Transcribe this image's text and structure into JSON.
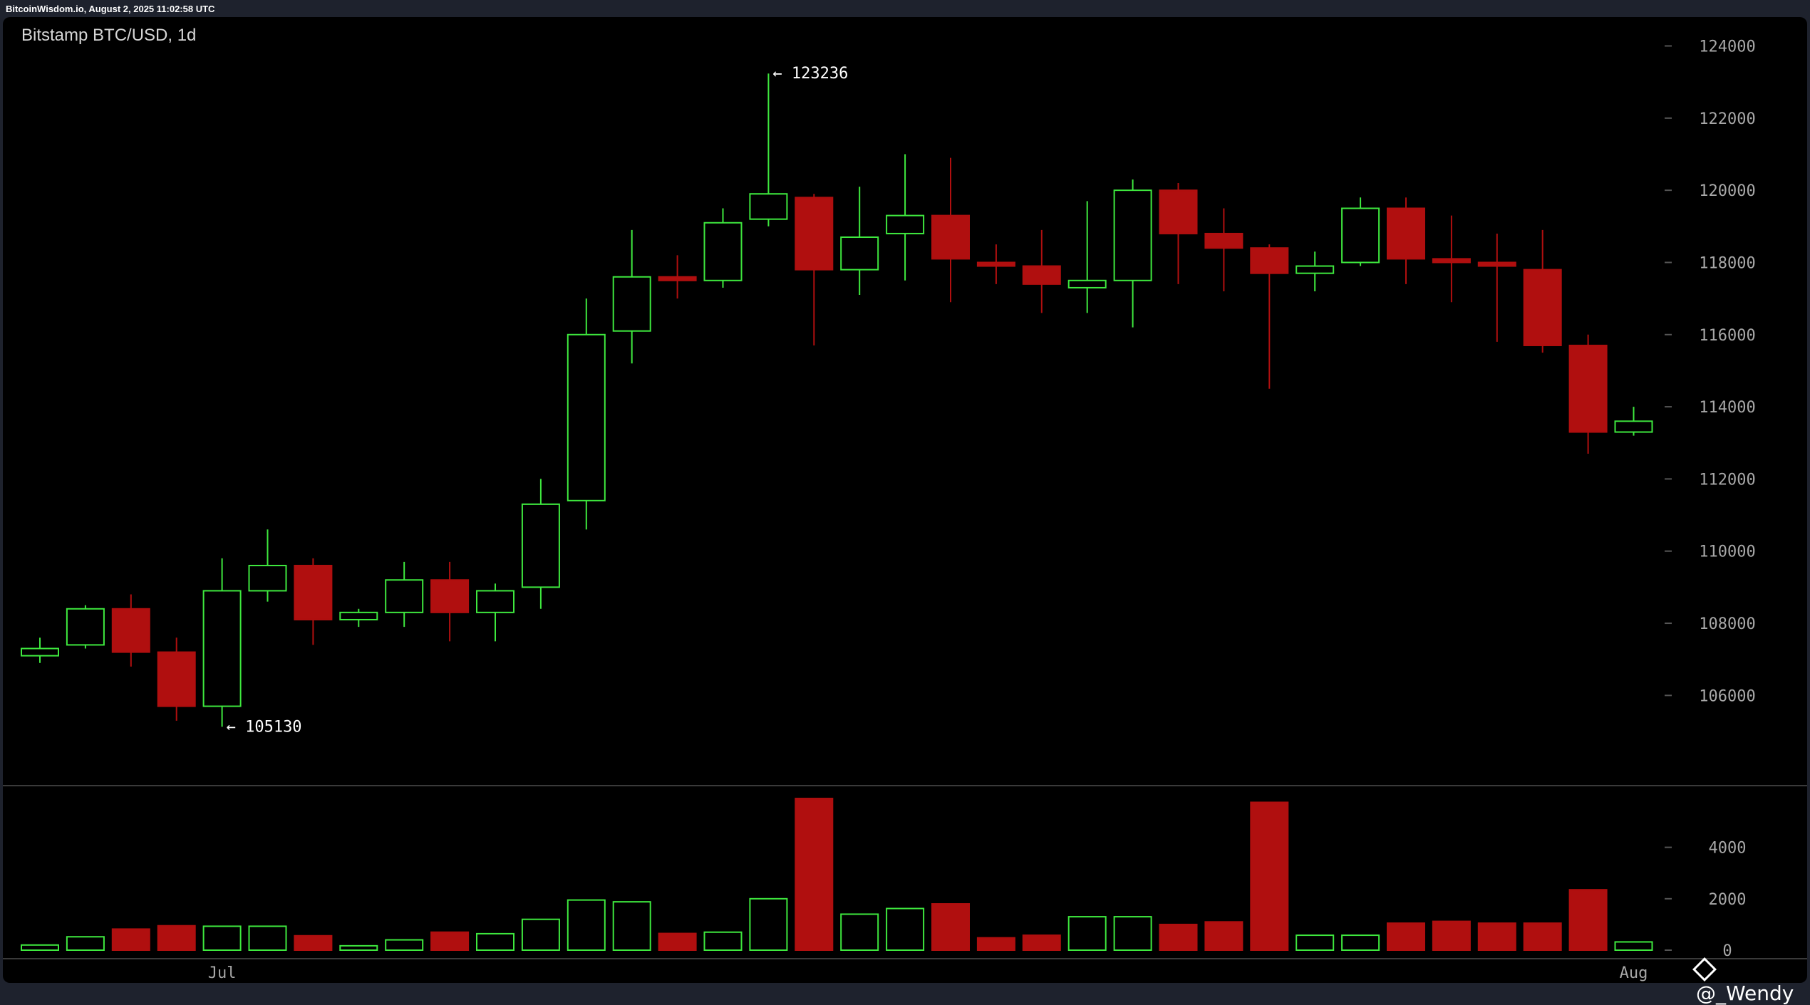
{
  "header": {
    "source_text": "BitcoinWisdom.io, August 2, 2025 11:02:58 UTC"
  },
  "watermark": {
    "text": "@_Wendy",
    "icon": "binance-diamond-icon"
  },
  "colors": {
    "up": "#3ee83e",
    "down": "#b00f0f",
    "background": "#000000",
    "axis_text": "#a8a8a8"
  },
  "chart_data": {
    "type": "candlestick",
    "title": "Bitstamp BTC/USD, 1d",
    "price_axis": {
      "ylim": [
        103500,
        124800
      ],
      "ticks": [
        106000,
        108000,
        110000,
        112000,
        114000,
        116000,
        118000,
        120000,
        122000,
        124000
      ],
      "position": "right"
    },
    "volume_axis": {
      "ylim": [
        0,
        6400
      ],
      "ticks": [
        0,
        2000,
        4000
      ]
    },
    "x_labels": [
      {
        "label": "Jul",
        "index": 4
      },
      {
        "label": "Aug",
        "index": 35
      }
    ],
    "annotations": [
      {
        "text": "← 123236",
        "index": 16,
        "value": 123236
      },
      {
        "text": "← 105130",
        "index": 4,
        "value": 105130
      }
    ],
    "candles": [
      {
        "open": 107100,
        "high": 107600,
        "low": 106900,
        "close": 107300,
        "volume": 200
      },
      {
        "open": 107400,
        "high": 108500,
        "low": 107300,
        "close": 108400,
        "volume": 520
      },
      {
        "open": 108400,
        "high": 108800,
        "low": 106800,
        "close": 107200,
        "volume": 820
      },
      {
        "open": 107200,
        "high": 107600,
        "low": 105300,
        "close": 105700,
        "volume": 950
      },
      {
        "open": 105700,
        "high": 109800,
        "low": 105130,
        "close": 108900,
        "volume": 930
      },
      {
        "open": 108900,
        "high": 110600,
        "low": 108600,
        "close": 109600,
        "volume": 930
      },
      {
        "open": 109600,
        "high": 109800,
        "low": 107400,
        "close": 108100,
        "volume": 560
      },
      {
        "open": 108100,
        "high": 108400,
        "low": 107900,
        "close": 108300,
        "volume": 170
      },
      {
        "open": 108300,
        "high": 109700,
        "low": 107900,
        "close": 109200,
        "volume": 400
      },
      {
        "open": 109200,
        "high": 109700,
        "low": 107500,
        "close": 108300,
        "volume": 700
      },
      {
        "open": 108300,
        "high": 109100,
        "low": 107500,
        "close": 108900,
        "volume": 640
      },
      {
        "open": 109000,
        "high": 112000,
        "low": 108400,
        "close": 111300,
        "volume": 1200
      },
      {
        "open": 111400,
        "high": 117000,
        "low": 110600,
        "close": 116000,
        "volume": 1950
      },
      {
        "open": 116100,
        "high": 118900,
        "low": 115200,
        "close": 117600,
        "volume": 1880
      },
      {
        "open": 117600,
        "high": 118200,
        "low": 117000,
        "close": 117500,
        "volume": 650
      },
      {
        "open": 117500,
        "high": 119500,
        "low": 117300,
        "close": 119100,
        "volume": 700
      },
      {
        "open": 119200,
        "high": 123236,
        "low": 119000,
        "close": 119900,
        "volume": 2000
      },
      {
        "open": 119800,
        "high": 119900,
        "low": 115700,
        "close": 117800,
        "volume": 5900
      },
      {
        "open": 117800,
        "high": 120100,
        "low": 117100,
        "close": 118700,
        "volume": 1400
      },
      {
        "open": 118800,
        "high": 121000,
        "low": 117500,
        "close": 119300,
        "volume": 1620
      },
      {
        "open": 119300,
        "high": 120900,
        "low": 116900,
        "close": 118100,
        "volume": 1800
      },
      {
        "open": 118000,
        "high": 118500,
        "low": 117400,
        "close": 117900,
        "volume": 480
      },
      {
        "open": 117900,
        "high": 118900,
        "low": 116600,
        "close": 117400,
        "volume": 580
      },
      {
        "open": 117300,
        "high": 119700,
        "low": 116600,
        "close": 117500,
        "volume": 1300
      },
      {
        "open": 117500,
        "high": 120300,
        "low": 116200,
        "close": 120000,
        "volume": 1300
      },
      {
        "open": 120000,
        "high": 120200,
        "low": 117400,
        "close": 118800,
        "volume": 1000
      },
      {
        "open": 118800,
        "high": 119500,
        "low": 117200,
        "close": 118400,
        "volume": 1100
      },
      {
        "open": 118400,
        "high": 118500,
        "low": 114500,
        "close": 117700,
        "volume": 5750
      },
      {
        "open": 117700,
        "high": 118300,
        "low": 117200,
        "close": 117900,
        "volume": 580
      },
      {
        "open": 118000,
        "high": 119800,
        "low": 117900,
        "close": 119500,
        "volume": 580
      },
      {
        "open": 119500,
        "high": 119800,
        "low": 117400,
        "close": 118100,
        "volume": 1050
      },
      {
        "open": 118100,
        "high": 119300,
        "low": 116900,
        "close": 118000,
        "volume": 1120
      },
      {
        "open": 118000,
        "high": 118800,
        "low": 115800,
        "close": 117900,
        "volume": 1050
      },
      {
        "open": 117800,
        "high": 118900,
        "low": 115500,
        "close": 115700,
        "volume": 1050
      },
      {
        "open": 115700,
        "high": 116000,
        "low": 112700,
        "close": 113300,
        "volume": 2350
      },
      {
        "open": 113300,
        "high": 114000,
        "low": 113200,
        "close": 113600,
        "volume": 320
      }
    ]
  }
}
